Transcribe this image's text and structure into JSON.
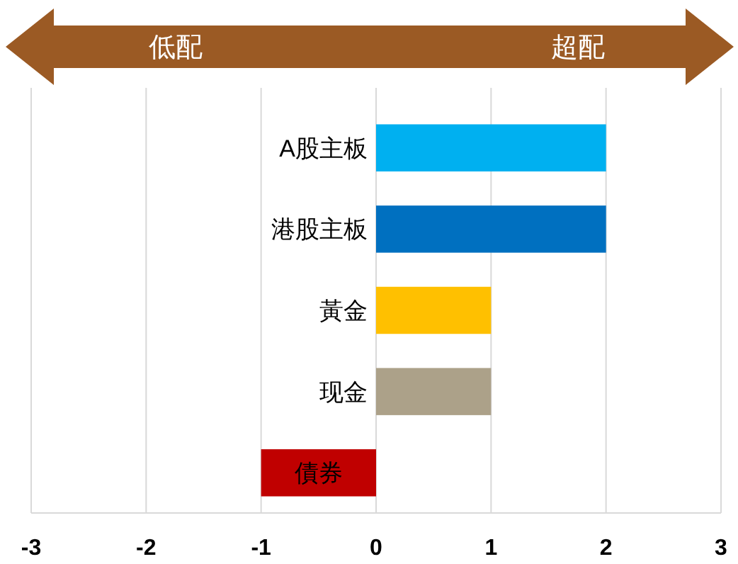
{
  "chart_data": {
    "type": "bar",
    "orientation": "horizontal",
    "categories": [
      "A股主板",
      "港股主板",
      "黃金",
      "现金",
      "債券"
    ],
    "values": [
      2,
      2,
      1,
      1,
      -1
    ],
    "colors": [
      "#00b0f0",
      "#0070c0",
      "#ffc000",
      "#aca189",
      "#c00000"
    ],
    "xlim": [
      -3,
      3
    ],
    "xticks": [
      -3,
      -2,
      -1,
      0,
      1,
      2,
      3
    ],
    "grid": "x",
    "annotations": [
      "低配",
      "超配"
    ]
  }
}
